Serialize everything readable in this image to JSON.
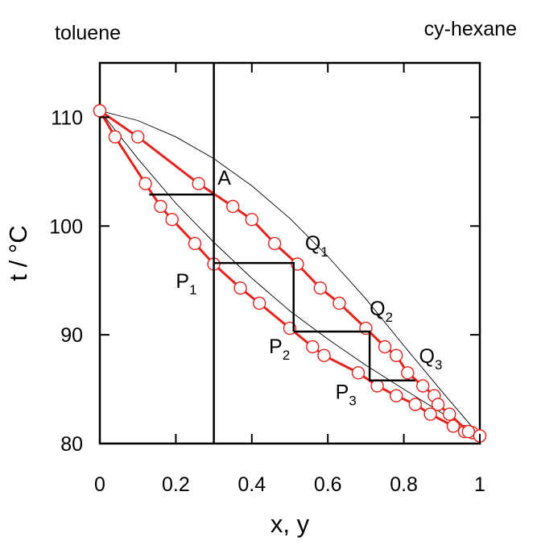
{
  "chart_data": {
    "type": "line",
    "title": "",
    "xlabel": "x, y",
    "ylabel": "t / °C",
    "xlim": [
      0,
      1
    ],
    "ylim": [
      80,
      115
    ],
    "x_ticks": [
      0,
      0.2,
      0.4,
      0.6,
      0.8,
      1
    ],
    "x_tick_labels": [
      "0",
      "0.2",
      "0.4",
      "0.6",
      "0.8",
      "1"
    ],
    "y_ticks": [
      80,
      90,
      100,
      110
    ],
    "y_tick_labels": [
      "80",
      "90",
      "100",
      "110"
    ],
    "grid": false,
    "corner_labels": {
      "left": "toluene",
      "right": "cy-hexane"
    },
    "colors": {
      "measured": "#e8221c",
      "marker_fill": "#ffffff",
      "construction": "#000000",
      "model": "#000000"
    },
    "series": [
      {
        "style": "measured-liquid",
        "x": [
          0,
          0.04,
          0.12,
          0.16,
          0.19,
          0.25,
          0.3,
          0.37,
          0.42,
          0.5,
          0.56,
          0.59,
          0.68,
          0.73,
          0.78,
          0.83,
          0.87,
          0.93,
          0.96,
          0.98,
          1
        ],
        "y": [
          110.6,
          108.2,
          103.9,
          101.8,
          100.6,
          98.4,
          96.5,
          94.3,
          92.9,
          90.6,
          88.9,
          88.1,
          86.5,
          85.3,
          84.4,
          83.6,
          82.7,
          81.6,
          81.1,
          81.0,
          80.7
        ]
      },
      {
        "style": "measured-vapor",
        "x": [
          0,
          0.1,
          0.26,
          0.35,
          0.4,
          0.46,
          0.52,
          0.58,
          0.63,
          0.7,
          0.75,
          0.78,
          0.81,
          0.85,
          0.88,
          0.89,
          0.92,
          0.97,
          1
        ],
        "y": [
          110.6,
          108.2,
          103.9,
          101.8,
          100.6,
          98.4,
          96.5,
          94.3,
          92.9,
          90.6,
          88.9,
          88.1,
          86.5,
          85.3,
          84.4,
          83.6,
          82.7,
          81.1,
          80.7
        ]
      },
      {
        "style": "model-bubble",
        "x": [
          0,
          0.1,
          0.2,
          0.3,
          0.4,
          0.5,
          0.6,
          0.7,
          0.8,
          0.9,
          1
        ],
        "y": [
          110.6,
          106.2,
          102.1,
          98.5,
          95.2,
          92.2,
          89.6,
          87.2,
          85.0,
          82.8,
          80.7
        ]
      },
      {
        "style": "model-dew",
        "x": [
          0,
          0.1,
          0.2,
          0.3,
          0.4,
          0.5,
          0.6,
          0.7,
          0.8,
          0.9,
          1
        ],
        "y": [
          110.6,
          109.7,
          108.2,
          106.2,
          103.7,
          100.7,
          97.2,
          93.3,
          89.0,
          84.8,
          80.7
        ]
      }
    ],
    "construction": {
      "vertical_line_x": 0.3,
      "stages": [
        [
          [
            0.3,
            102.9
          ],
          [
            0.13,
            102.9
          ]
        ],
        [
          [
            0.3,
            96.6
          ],
          [
            0.51,
            96.6
          ],
          [
            0.51,
            90.3
          ]
        ],
        [
          [
            0.51,
            90.3
          ],
          [
            0.71,
            90.3
          ],
          [
            0.71,
            85.8
          ]
        ],
        [
          [
            0.71,
            85.8
          ],
          [
            0.83,
            85.8
          ]
        ]
      ]
    },
    "annotations": [
      {
        "id": "A",
        "label": "A",
        "sub": "",
        "x": 0.31,
        "y": 103.8
      },
      {
        "id": "Q1",
        "label": "Q",
        "sub": "1",
        "x": 0.54,
        "y": 97.8
      },
      {
        "id": "Q2",
        "label": "Q",
        "sub": "2",
        "x": 0.71,
        "y": 91.8
      },
      {
        "id": "Q3",
        "label": "Q",
        "sub": "3",
        "x": 0.84,
        "y": 87.4
      },
      {
        "id": "P1",
        "label": "P",
        "sub": "1",
        "x": 0.2,
        "y": 94.3
      },
      {
        "id": "P2",
        "label": "P",
        "sub": "2",
        "x": 0.445,
        "y": 88.3
      },
      {
        "id": "P3",
        "label": "P",
        "sub": "3",
        "x": 0.62,
        "y": 84.1
      }
    ]
  }
}
